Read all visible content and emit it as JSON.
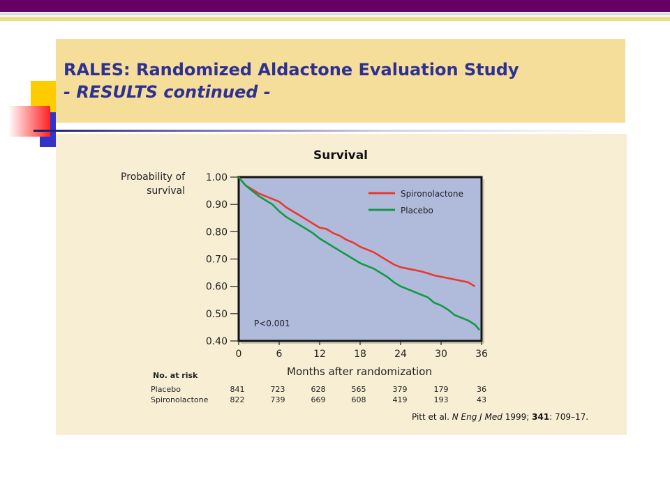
{
  "slide": {
    "title_line1": "RALES: Randomized Aldactone Evaluation Study",
    "title_line2": "- RESULTS continued -"
  },
  "colors": {
    "title_text": "#2e3192",
    "spironolactone": "#e8392e",
    "placebo": "#119944",
    "plot_bg": "#b0bada",
    "panel_bg": "#f7eed4",
    "header_bg": "#f5dd9a",
    "top_bar": "#660066"
  },
  "chart_data": {
    "type": "line",
    "title": "Survival",
    "ylabel": "Probability of survival",
    "xlabel": "Months after randomization",
    "xlim": [
      0,
      36
    ],
    "ylim": [
      0.4,
      1.0
    ],
    "xticks": [
      0,
      6,
      12,
      18,
      24,
      30,
      36
    ],
    "yticks": [
      "1.00",
      "0.90",
      "0.80",
      "0.70",
      "0.60",
      "0.50",
      "0.40"
    ],
    "legend_position": "top-right",
    "grid": false,
    "annotation": "P<0.001",
    "series": [
      {
        "name": "Spironolactone",
        "color": "#e8392e",
        "x": [
          0,
          0.5,
          1,
          2,
          3,
          4,
          5,
          6,
          7,
          8,
          9,
          10,
          11,
          12,
          13,
          14,
          15,
          16,
          17,
          18,
          19,
          20,
          21,
          22,
          23,
          24,
          25,
          26,
          27,
          28,
          29,
          30,
          31,
          32,
          33,
          34,
          35
        ],
        "y": [
          1.0,
          0.985,
          0.97,
          0.955,
          0.94,
          0.93,
          0.92,
          0.91,
          0.89,
          0.875,
          0.86,
          0.845,
          0.83,
          0.815,
          0.81,
          0.795,
          0.785,
          0.77,
          0.76,
          0.745,
          0.735,
          0.725,
          0.71,
          0.695,
          0.68,
          0.67,
          0.665,
          0.66,
          0.655,
          0.648,
          0.64,
          0.635,
          0.63,
          0.625,
          0.62,
          0.615,
          0.6
        ]
      },
      {
        "name": "Placebo",
        "color": "#119944",
        "x": [
          0,
          0.5,
          1,
          2,
          3,
          4,
          5,
          6,
          7,
          8,
          9,
          10,
          11,
          12,
          13,
          14,
          15,
          16,
          17,
          18,
          19,
          20,
          21,
          22,
          23,
          24,
          25,
          26,
          27,
          28,
          29,
          30,
          31,
          32,
          33,
          34,
          35,
          35.7
        ],
        "y": [
          1.0,
          0.985,
          0.97,
          0.95,
          0.93,
          0.915,
          0.9,
          0.875,
          0.855,
          0.84,
          0.825,
          0.81,
          0.795,
          0.775,
          0.76,
          0.745,
          0.73,
          0.715,
          0.7,
          0.685,
          0.675,
          0.665,
          0.65,
          0.635,
          0.615,
          0.6,
          0.59,
          0.58,
          0.57,
          0.56,
          0.54,
          0.53,
          0.515,
          0.495,
          0.485,
          0.475,
          0.46,
          0.44
        ]
      }
    ],
    "at_risk": {
      "heading": "No. at risk",
      "rows": [
        {
          "label": "Placebo",
          "values": [
            "841",
            "723",
            "628",
            "565",
            "379",
            "179",
            "36"
          ]
        },
        {
          "label": "Spironolactone",
          "values": [
            "822",
            "739",
            "669",
            "608",
            "419",
            "193",
            "43"
          ]
        }
      ]
    }
  },
  "citation": {
    "authors": "Pitt et al.",
    "journal": "N Eng J Med",
    "year": "1999;",
    "volume": "341",
    "pages": ": 709–17."
  }
}
